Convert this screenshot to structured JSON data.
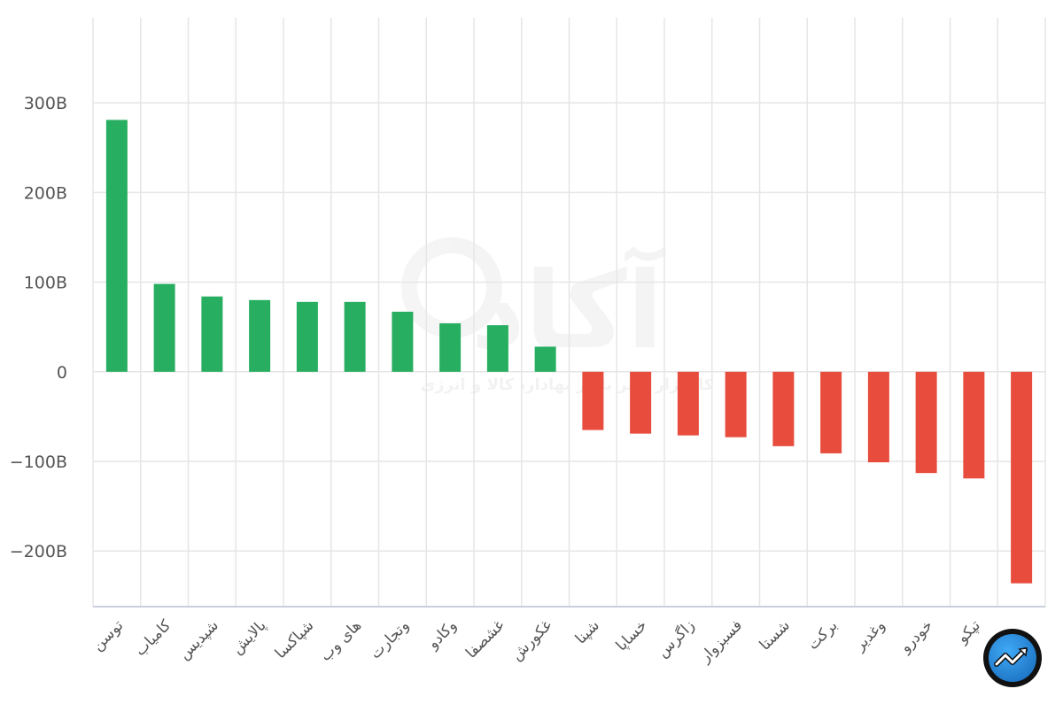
{
  "chart_data": {
    "type": "bar",
    "categories": [
      "توسن",
      "کامیاب",
      "شپدیس",
      "پالایش",
      "شپاکسا",
      "های وب",
      "وتجارت",
      "وکادو",
      "غشصفا",
      "غکورش",
      "شپنا",
      "خساپا",
      "زاگرس",
      "فسبزوار",
      "شستا",
      "برکت",
      "وغدیر",
      "خودرو",
      "تپکو",
      ""
    ],
    "values": [
      281,
      98,
      84,
      80,
      78,
      78,
      67,
      54,
      52,
      28,
      -65,
      -69,
      -71,
      -73,
      -83,
      -91,
      -101,
      -113,
      -119,
      -236
    ],
    "ylim": [
      -262,
      395
    ],
    "yticks": [
      300,
      200,
      100,
      0,
      -100,
      -200
    ],
    "ytick_labels": [
      "300B",
      "200B",
      "100B",
      "0",
      "−100B",
      "−200B"
    ],
    "colors": {
      "positive": "#27ae60",
      "negative": "#e74c3c",
      "grid": "#e6e6e6",
      "axis": "#c8d0dc"
    },
    "grid": true,
    "legend": "none"
  },
  "watermark": {
    "brand": "آکاد",
    "tagline": "کارگزار برتر بازار بهادار، کالا و انرژی"
  },
  "logo": {
    "icon": "trend-arrow-icon"
  }
}
